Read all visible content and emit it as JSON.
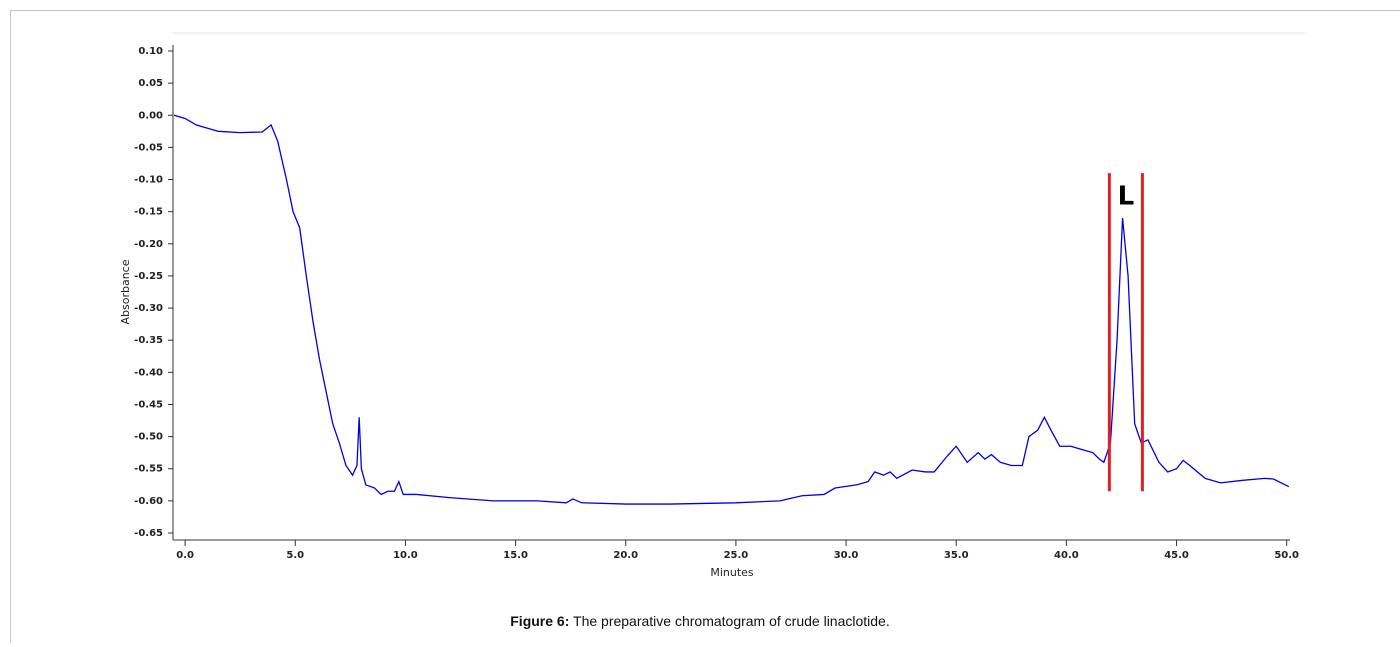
{
  "chart_data": {
    "type": "line",
    "caption_label": "Figure 6:",
    "caption": "The preparative chromatogram of crude linaclotide.",
    "xlabel": "Minutes",
    "ylabel": "Absorbance",
    "color": "#0000e0",
    "xlim": [
      -0.55,
      50.15
    ],
    "ylim": [
      -0.65,
      0.1
    ],
    "xticks": [
      {
        "value": 0,
        "label": "0.0"
      },
      {
        "value": 5,
        "label": "5.0"
      },
      {
        "value": 10,
        "label": "10.0"
      },
      {
        "value": 15,
        "label": "15.0"
      },
      {
        "value": 20,
        "label": "20.0"
      },
      {
        "value": 25,
        "label": "25.0"
      },
      {
        "value": 30,
        "label": "30.0"
      },
      {
        "value": 35,
        "label": "35.0"
      },
      {
        "value": 40,
        "label": "40.0"
      },
      {
        "value": 45,
        "label": "45.0"
      },
      {
        "value": 50,
        "label": "50.0"
      }
    ],
    "yticks": [
      {
        "value": 0.1,
        "label": "0.10"
      },
      {
        "value": 0.05,
        "label": "0.05"
      },
      {
        "value": 0,
        "label": "0.00"
      },
      {
        "value": -0.05,
        "label": "-0.05"
      },
      {
        "value": -0.1,
        "label": "-0.10"
      },
      {
        "value": -0.15,
        "label": "-0.15"
      },
      {
        "value": -0.2,
        "label": "-0.20"
      },
      {
        "value": -0.25,
        "label": "-0.25"
      },
      {
        "value": -0.3,
        "label": "-0.30"
      },
      {
        "value": -0.35,
        "label": "-0.35"
      },
      {
        "value": -0.4,
        "label": "-0.40"
      },
      {
        "value": -0.45,
        "label": "-0.45"
      },
      {
        "value": -0.5,
        "label": "-0.50"
      },
      {
        "value": -0.55,
        "label": "-0.55"
      },
      {
        "value": -0.6,
        "label": "-0.60"
      },
      {
        "value": -0.65,
        "label": "-0.65"
      }
    ],
    "x": [
      -0.5,
      0.0,
      0.5,
      1.5,
      2.5,
      3.5,
      3.9,
      4.2,
      4.6,
      4.9,
      5.2,
      5.5,
      5.8,
      6.1,
      6.4,
      6.7,
      7.0,
      7.3,
      7.6,
      7.8,
      7.9,
      8.0,
      8.2,
      8.6,
      8.9,
      9.2,
      9.5,
      9.7,
      9.9,
      10.5,
      12,
      14,
      16,
      17.3,
      17.6,
      18,
      20,
      22,
      25,
      27,
      28,
      29,
      29.5,
      30.5,
      31,
      31.3,
      31.7,
      32,
      32.3,
      33,
      33.6,
      34.0,
      34.6,
      35.0,
      35.5,
      36.0,
      36.3,
      36.6,
      37.0,
      37.5,
      38.0,
      38.3,
      38.7,
      39.0,
      39.3,
      39.7,
      40.2,
      40.7,
      41.2,
      41.5,
      41.7,
      42.0,
      42.3,
      42.55,
      42.8,
      43.1,
      43.4,
      43.7,
      44.2,
      44.6,
      45.0,
      45.3,
      45.6,
      46.3,
      47.0,
      48.0,
      49.0,
      49.4,
      50.1
    ],
    "values": [
      0.0,
      -0.005,
      -0.015,
      -0.025,
      -0.027,
      -0.026,
      -0.015,
      -0.04,
      -0.1,
      -0.15,
      -0.175,
      -0.25,
      -0.32,
      -0.38,
      -0.43,
      -0.48,
      -0.51,
      -0.545,
      -0.56,
      -0.545,
      -0.47,
      -0.55,
      -0.575,
      -0.58,
      -0.59,
      -0.585,
      -0.585,
      -0.57,
      -0.59,
      -0.59,
      -0.595,
      -0.6,
      -0.6,
      -0.603,
      -0.597,
      -0.603,
      -0.605,
      -0.605,
      -0.603,
      -0.6,
      -0.592,
      -0.59,
      -0.58,
      -0.575,
      -0.57,
      -0.555,
      -0.56,
      -0.555,
      -0.565,
      -0.552,
      -0.555,
      -0.555,
      -0.53,
      -0.515,
      -0.54,
      -0.525,
      -0.535,
      -0.528,
      -0.54,
      -0.545,
      -0.545,
      -0.5,
      -0.49,
      -0.47,
      -0.49,
      -0.515,
      -0.515,
      -0.52,
      -0.525,
      -0.535,
      -0.54,
      -0.51,
      -0.35,
      -0.16,
      -0.25,
      -0.48,
      -0.51,
      -0.505,
      -0.54,
      -0.555,
      -0.55,
      -0.537,
      -0.545,
      -0.565,
      -0.572,
      -0.568,
      -0.565,
      -0.566,
      -0.578
    ],
    "annotation": {
      "text": "L",
      "lines": [
        41.95,
        43.45
      ],
      "line_ylim": [
        -0.585,
        -0.09
      ],
      "color": "#e02020"
    }
  }
}
